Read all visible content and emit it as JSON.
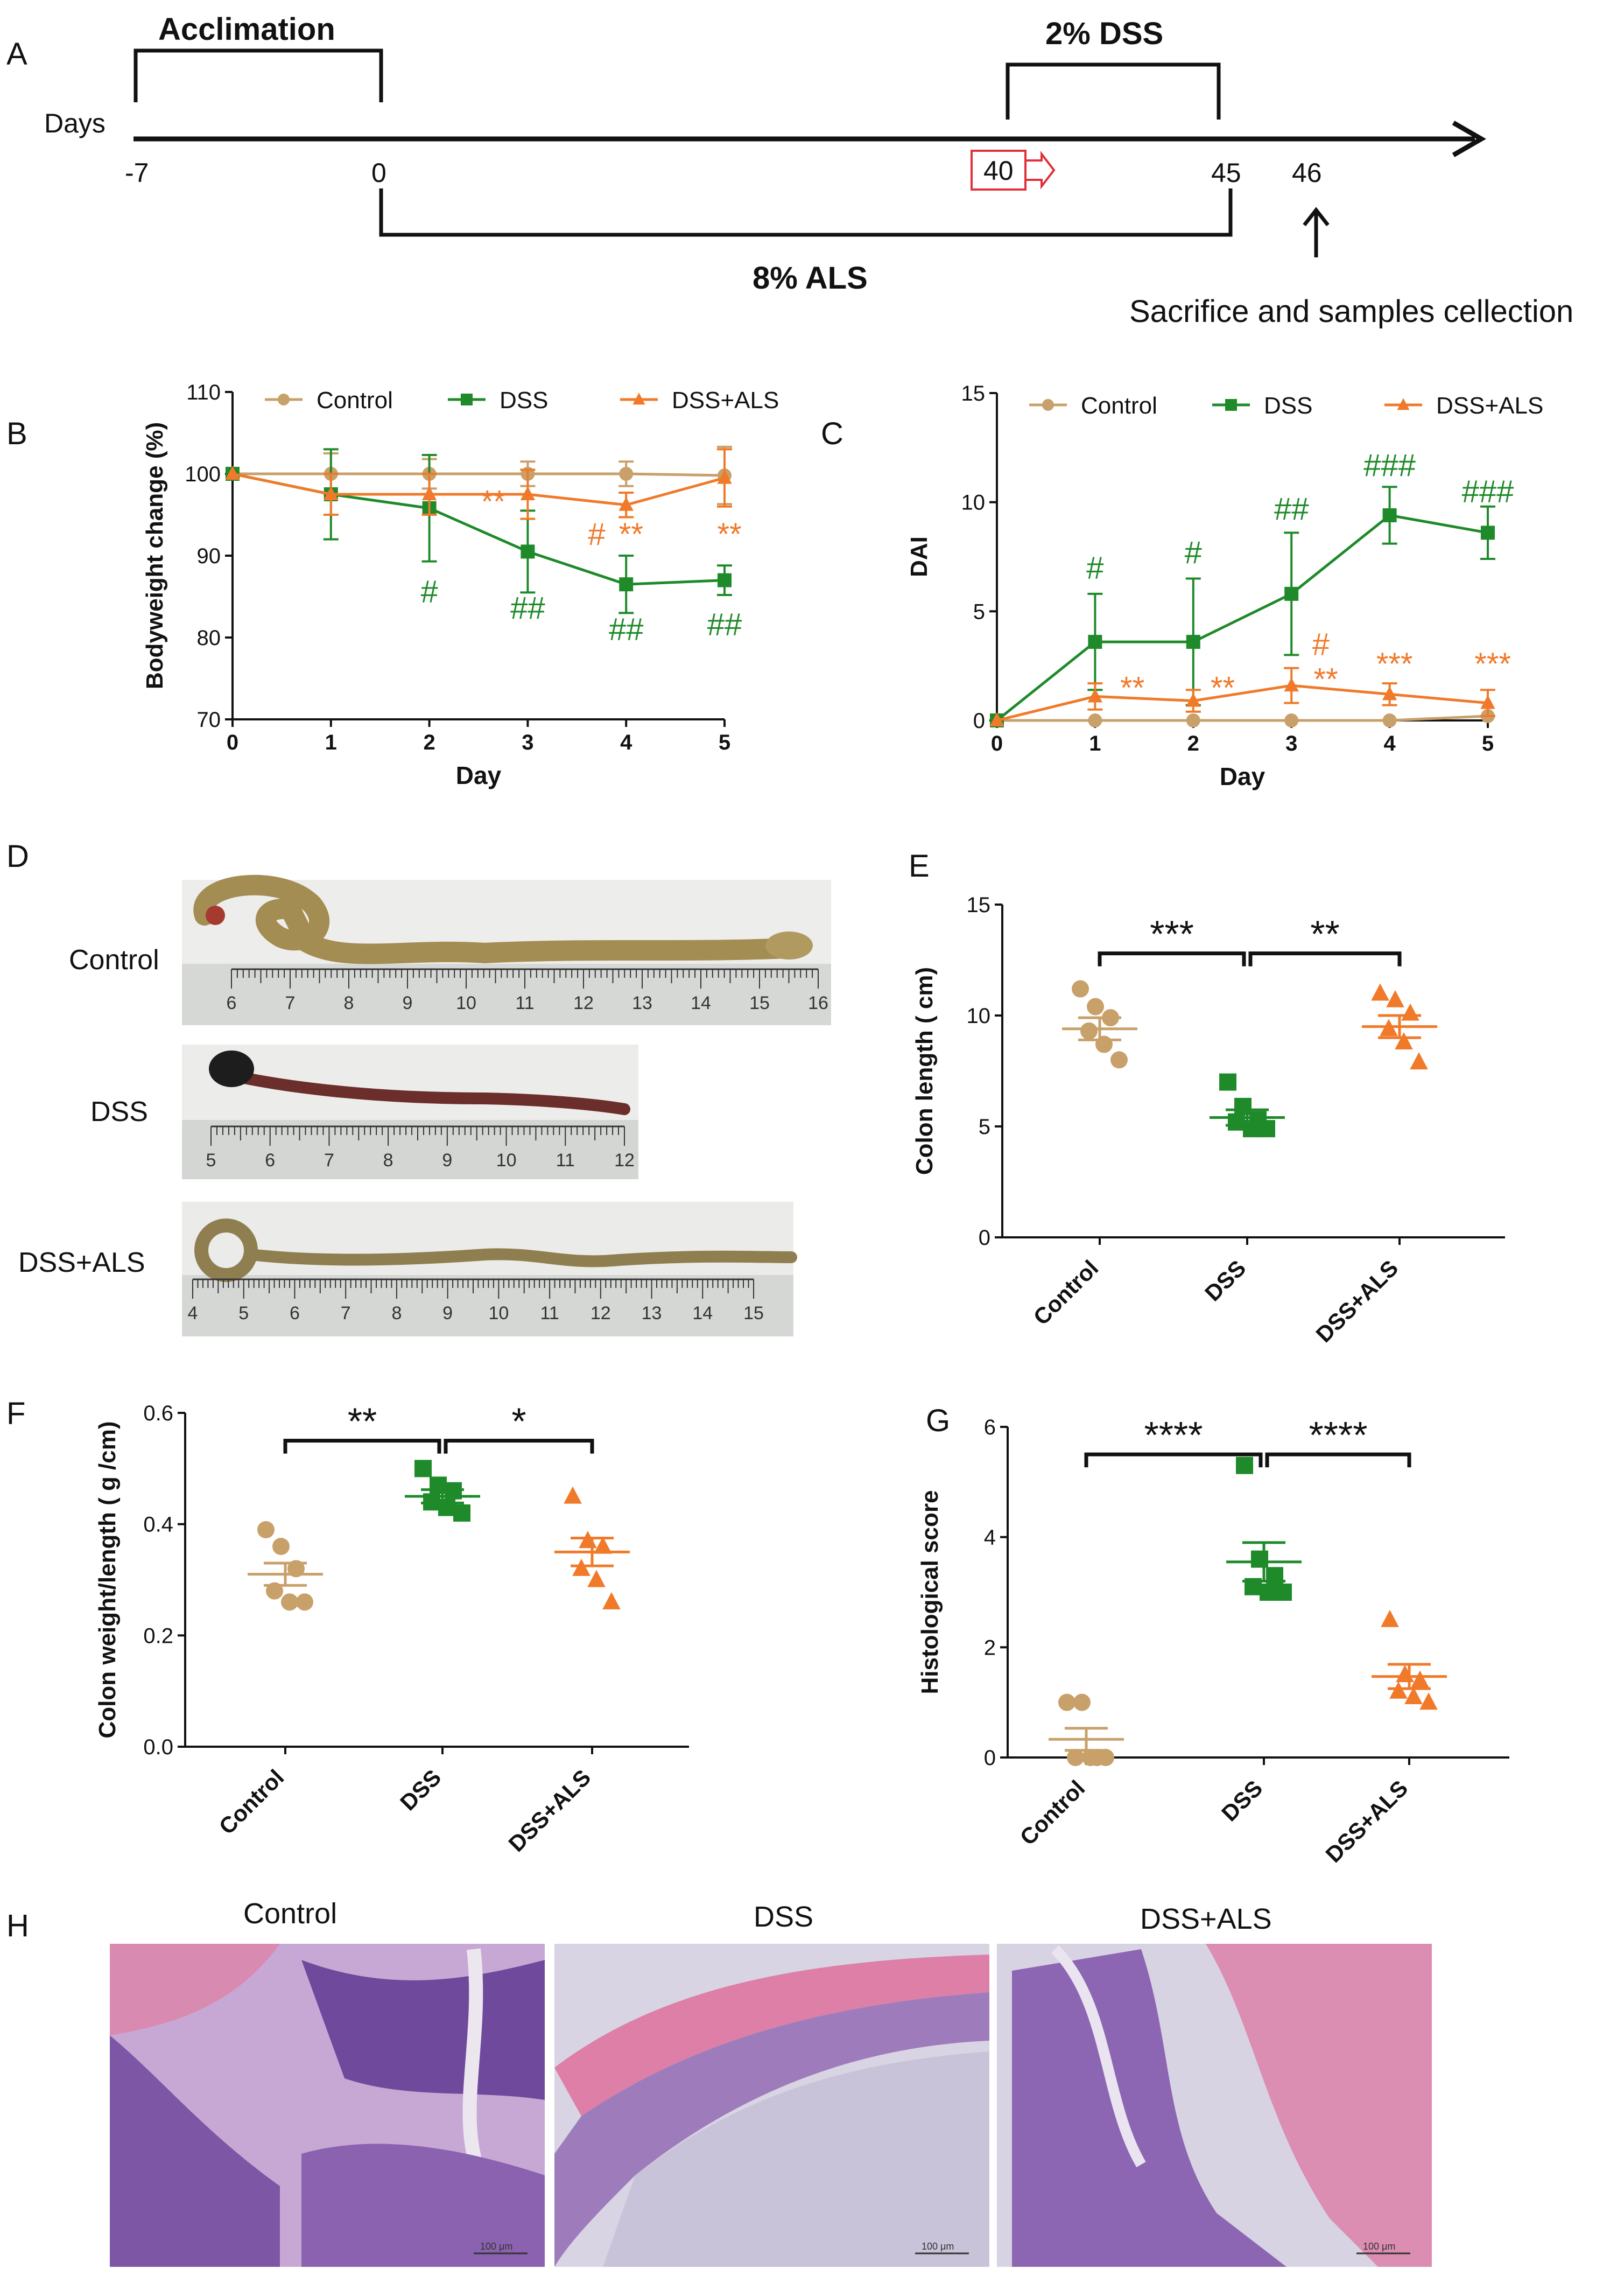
{
  "colors": {
    "control": "#c8a06a",
    "dss": "#1f8a2a",
    "als": "#f07a2a",
    "axis": "#111111",
    "scalebar_text": "#333333"
  },
  "panels": {
    "A": "A",
    "B": "B",
    "C": "C",
    "D": "D",
    "E": "E",
    "F": "F",
    "G": "G",
    "H": "H"
  },
  "timeline": {
    "acclimation": "Acclimation",
    "dss_label": "2% DSS",
    "als_label": "8% ALS",
    "days_label": "Days",
    "ticks": [
      "-7",
      "0",
      "40",
      "45",
      "46"
    ],
    "sacrifice": "Sacrifice and samples cellection"
  },
  "legend": {
    "control": "Control",
    "dss": "DSS",
    "als": "DSS+ALS"
  },
  "chart_data": [
    {
      "id": "B",
      "type": "line",
      "title": "",
      "xlabel": "Day",
      "ylabel": "Bodyweight change (%)",
      "x": [
        0,
        1,
        2,
        3,
        4,
        5
      ],
      "xticks": [
        "0",
        "1",
        "2",
        "3",
        "4",
        "5"
      ],
      "ylim": [
        70,
        110
      ],
      "yticks": [
        "70",
        "80",
        "90",
        "100",
        "110"
      ],
      "series": [
        {
          "name": "Control",
          "values": [
            100,
            100,
            100,
            100,
            100,
            99.8
          ],
          "err": [
            0,
            2.5,
            1.8,
            1.5,
            1.5,
            3.5
          ]
        },
        {
          "name": "DSS",
          "values": [
            100,
            97.5,
            95.8,
            90.5,
            86.5,
            87
          ],
          "err": [
            0,
            5.5,
            6.5,
            5,
            3.5,
            1.8
          ]
        },
        {
          "name": "DSS+ALS",
          "values": [
            100,
            97.5,
            97.5,
            97.5,
            96.2,
            99.5
          ],
          "err": [
            0,
            2.5,
            2.5,
            3,
            1.5,
            3.5
          ]
        }
      ],
      "annotations": [
        {
          "text": "#",
          "series": "DSS",
          "day": 2,
          "value": 84.3
        },
        {
          "text": "##",
          "series": "DSS",
          "day": 3,
          "value": 82.3
        },
        {
          "text": "##",
          "series": "DSS",
          "day": 4,
          "value": 79.7
        },
        {
          "text": "##",
          "series": "DSS",
          "day": 5,
          "value": 80.3
        },
        {
          "text": "**",
          "series": "DSS+ALS",
          "day": 2.65,
          "value": 95.3
        },
        {
          "text": "#",
          "series": "DSS+ALS",
          "day": 3.7,
          "value": 91.3
        },
        {
          "text": "**",
          "series": "DSS+ALS",
          "day": 4.05,
          "value": 91.3
        },
        {
          "text": "**",
          "series": "DSS+ALS",
          "day": 5.05,
          "value": 91.3
        }
      ]
    },
    {
      "id": "C",
      "type": "line",
      "title": "",
      "xlabel": "Day",
      "ylabel": "DAI",
      "x": [
        0,
        1,
        2,
        3,
        4,
        5
      ],
      "xticks": [
        "0",
        "1",
        "2",
        "3",
        "4",
        "5"
      ],
      "ylim": [
        0,
        15
      ],
      "yticks": [
        "0",
        "5",
        "10",
        "15"
      ],
      "series": [
        {
          "name": "Control",
          "values": [
            0,
            0,
            0,
            0,
            0,
            0.2
          ],
          "err": [
            0,
            0,
            0,
            0,
            0,
            0
          ]
        },
        {
          "name": "DSS",
          "values": [
            0,
            3.6,
            3.6,
            5.8,
            9.4,
            8.6
          ],
          "err": [
            0,
            2.2,
            2.9,
            2.8,
            1.3,
            1.2
          ]
        },
        {
          "name": "DSS+ALS",
          "values": [
            0,
            1.1,
            0.9,
            1.6,
            1.2,
            0.8
          ],
          "err": [
            0,
            0.6,
            0.5,
            0.8,
            0.5,
            0.6
          ]
        }
      ],
      "annotations": [
        {
          "text": "#",
          "series": "DSS",
          "day": 1,
          "value": 6.5
        },
        {
          "text": "#",
          "series": "DSS",
          "day": 2,
          "value": 7.2
        },
        {
          "text": "##",
          "series": "DSS",
          "day": 3,
          "value": 9.2
        },
        {
          "text": "###",
          "series": "DSS",
          "day": 4,
          "value": 11.2
        },
        {
          "text": "###",
          "series": "DSS",
          "day": 5,
          "value": 10.0
        },
        {
          "text": "**",
          "series": "DSS+ALS",
          "day": 1.38,
          "value": 1.0
        },
        {
          "text": "**",
          "series": "DSS+ALS",
          "day": 2.3,
          "value": 1.0
        },
        {
          "text": "#",
          "series": "DSS+ALS",
          "day": 3.3,
          "value": 3.0
        },
        {
          "text": "**",
          "series": "DSS+ALS",
          "day": 3.35,
          "value": 1.4
        },
        {
          "text": "***",
          "series": "DSS+ALS",
          "day": 4.05,
          "value": 2.1
        },
        {
          "text": "***",
          "series": "DSS+ALS",
          "day": 5.05,
          "value": 2.1
        }
      ]
    },
    {
      "id": "E",
      "type": "scatter",
      "title": "",
      "xlabel": "",
      "ylabel": "Colon length ( cm)",
      "categories": [
        "Control",
        "DSS",
        "DSS+ALS"
      ],
      "ylim": [
        0,
        15
      ],
      "yticks": [
        "0",
        "5",
        "10",
        "15"
      ],
      "points": [
        [
          11.2,
          10.4,
          9.9,
          9.3,
          8.7,
          8.0
        ],
        [
          7.0,
          5.9,
          5.3,
          5.2,
          4.9,
          4.9
        ],
        [
          11.0,
          10.7,
          10.1,
          9.4,
          8.8,
          7.9
        ]
      ],
      "mean": [
        9.4,
        5.4,
        9.5
      ],
      "sem": [
        0.5,
        0.35,
        0.5
      ],
      "significance": [
        {
          "from": 0,
          "to": 1,
          "text": "***",
          "y": 12.8
        },
        {
          "from": 1,
          "to": 2,
          "text": "**",
          "y": 12.8
        }
      ]
    },
    {
      "id": "F",
      "type": "scatter",
      "title": "",
      "xlabel": "",
      "ylabel": "Colon weight/length ( g /cm)",
      "categories": [
        "Control",
        "DSS",
        "DSS+ALS"
      ],
      "ylim": [
        0,
        0.6
      ],
      "yticks": [
        "0.0",
        "0.2",
        "0.4",
        "0.6"
      ],
      "points": [
        [
          0.39,
          0.36,
          0.32,
          0.28,
          0.26,
          0.26
        ],
        [
          0.5,
          0.47,
          0.46,
          0.44,
          0.43,
          0.42
        ],
        [
          0.45,
          0.37,
          0.36,
          0.32,
          0.3,
          0.26
        ]
      ],
      "mean": [
        0.31,
        0.45,
        0.35
      ],
      "sem": [
        0.02,
        0.012,
        0.025
      ],
      "significance": [
        {
          "from": 0,
          "to": 1,
          "text": "**",
          "y": 0.55
        },
        {
          "from": 1,
          "to": 2,
          "text": "*",
          "y": 0.55
        }
      ]
    },
    {
      "id": "G",
      "type": "scatter",
      "title": "",
      "xlabel": "",
      "ylabel": "Histological score",
      "categories": [
        "Control",
        "DSS",
        "DSS+ALS"
      ],
      "ylim": [
        0,
        6
      ],
      "yticks": [
        "0",
        "2",
        "4",
        "6"
      ],
      "points": [
        [
          1,
          1,
          0,
          0,
          0,
          0
        ],
        [
          5.3,
          3.6,
          3.3,
          3.1,
          3.0,
          3.0
        ],
        [
          2.5,
          1.5,
          1.4,
          1.2,
          1.1,
          1.0
        ]
      ],
      "mean": [
        0.33,
        3.55,
        1.47
      ],
      "sem": [
        0.2,
        0.35,
        0.22
      ],
      "significance": [
        {
          "from": 0,
          "to": 1,
          "text": "****",
          "y": 5.5
        },
        {
          "from": 1,
          "to": 2,
          "text": "****",
          "y": 5.5
        }
      ]
    }
  ],
  "panelD": {
    "rows": [
      {
        "label": "Control",
        "ruler": [
          "6",
          "7",
          "8",
          "9",
          "10",
          "11",
          "12",
          "13",
          "14",
          "15",
          "16"
        ]
      },
      {
        "label": "DSS",
        "ruler": [
          "5",
          "6",
          "7",
          "8",
          "9",
          "10",
          "11",
          "12"
        ]
      },
      {
        "label": "DSS+ALS",
        "ruler": [
          "4",
          "5",
          "6",
          "7",
          "8",
          "9",
          "10",
          "11",
          "12",
          "13",
          "14",
          "15"
        ]
      }
    ]
  },
  "panelH": {
    "titles": [
      "Control",
      "DSS",
      "DSS+ALS"
    ],
    "scalebar": "100 μm"
  }
}
